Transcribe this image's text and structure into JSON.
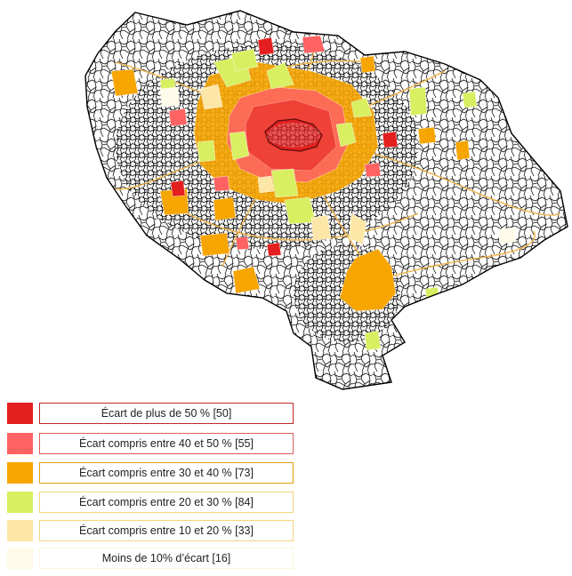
{
  "colors": {
    "over50": "#e41f1f",
    "40to50": "#ff6262",
    "30to40": "#f7a500",
    "20to30": "#d8ef62",
    "10to20": "#fde7a8",
    "under10": "#fffbe9",
    "roads": "#101010",
    "highways": "#f0b44a",
    "paris": "#e41f1f"
  },
  "legend": [
    {
      "label": "Écart de plus de 50 % [50]",
      "color": "#e41f1f",
      "border": "#c0282a"
    },
    {
      "label": "Écart compris entre 40 et 50 % [55]",
      "color": "#ff6262",
      "border": "#e05a5a"
    },
    {
      "label": "Écart compris entre 30 et 40 % [73]",
      "color": "#f7a500",
      "border": "#e2a010"
    },
    {
      "label": "Écart compris entre 20 et 30 % [84]",
      "color": "#d8ef62",
      "border": "#f1d67a"
    },
    {
      "label": "Écart compris entre 10 et 20 % [33]",
      "color": "#fde7a8",
      "border": "#f1d67a"
    },
    {
      "label": "Moins de 10% d’écart [16]",
      "color": "#fffbe9",
      "border": "#fff6de"
    }
  ]
}
